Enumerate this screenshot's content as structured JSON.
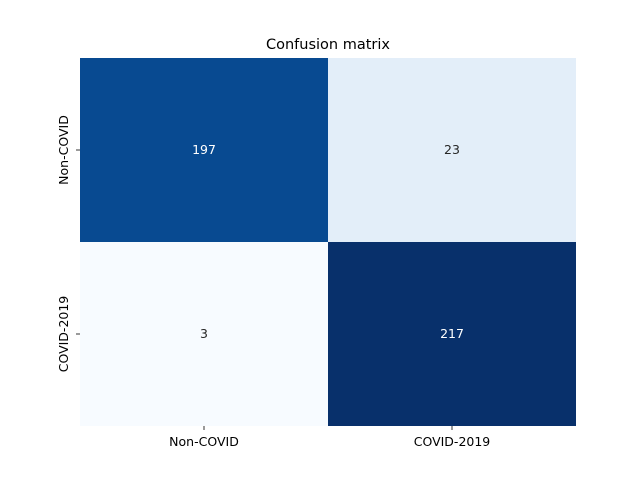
{
  "chart_data": {
    "type": "heatmap",
    "title": "Confusion matrix",
    "x_categories": [
      "Non-COVID",
      "COVID-2019"
    ],
    "y_categories": [
      "Non-COVID",
      "COVID-2019"
    ],
    "values": [
      [
        197,
        23
      ],
      [
        3,
        217
      ]
    ],
    "colormap": "Blues",
    "colorbar": false,
    "cell_colors": [
      [
        "#084a91",
        "#e3eef9"
      ],
      [
        "#f7fbff",
        "#08306b"
      ]
    ],
    "text_colors": [
      [
        "#ffffff",
        "#262626"
      ],
      [
        "#262626",
        "#ffffff"
      ]
    ]
  }
}
